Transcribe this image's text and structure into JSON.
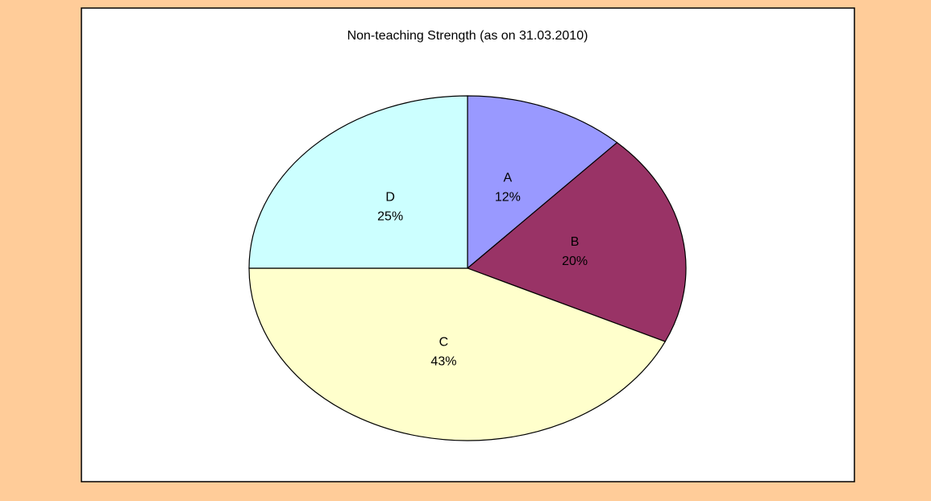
{
  "chart_data": {
    "type": "pie",
    "title": "Non-teaching Strength (as on 31.03.2010)",
    "categories": [
      "A",
      "B",
      "C",
      "D"
    ],
    "values": [
      12,
      20,
      43,
      25
    ],
    "value_labels": [
      "12%",
      "20%",
      "43%",
      "25%"
    ],
    "colors": [
      "#9999FF",
      "#993366",
      "#FFFFCC",
      "#CCFFFF"
    ]
  }
}
